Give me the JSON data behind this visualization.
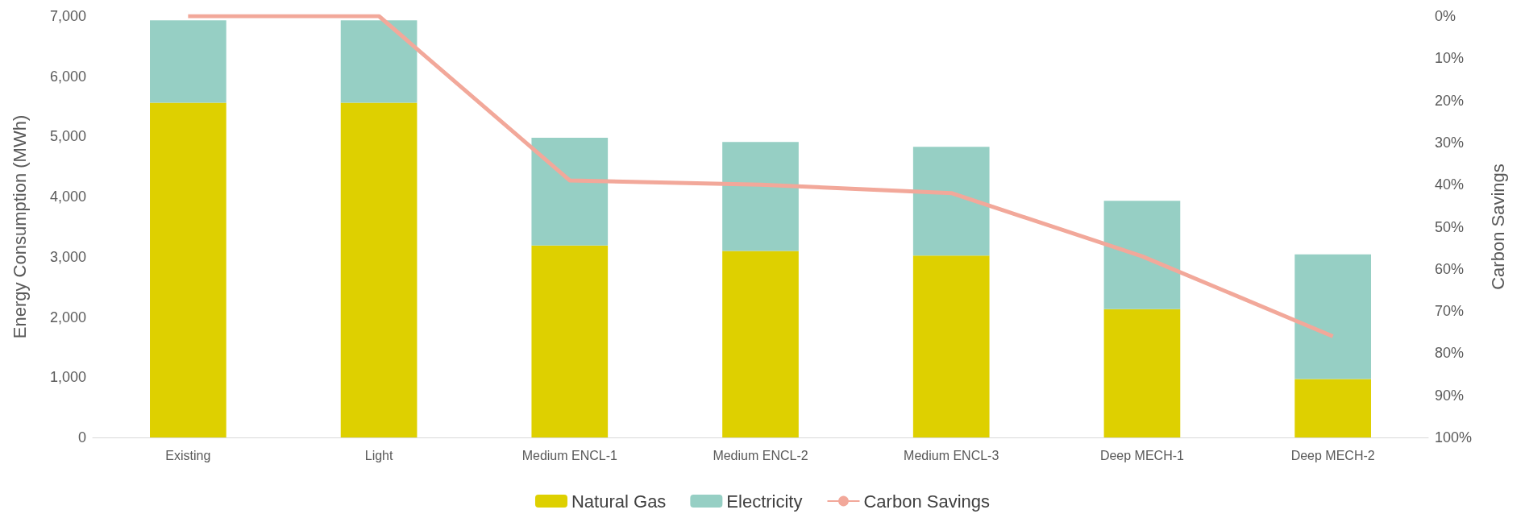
{
  "chart_data": {
    "type": "bar",
    "stacked": true,
    "ylabel": "Energy Consumption (MWh)",
    "y2label": "Carbon Savings",
    "categories": [
      "Existing",
      "Light",
      "Medium ENCL-1",
      "Medium ENCL-2",
      "Medium ENCL-3",
      "Deep MECH-1",
      "Deep MECH-2"
    ],
    "series": [
      {
        "name": "Natural Gas",
        "color": "#ded000",
        "values": [
          5560,
          5560,
          3190,
          3100,
          3020,
          2130,
          970
        ]
      },
      {
        "name": "Electricity",
        "color": "#96cfc4",
        "values": [
          1370,
          1370,
          1790,
          1810,
          1810,
          1800,
          2070
        ]
      },
      {
        "name": "Carbon Savings",
        "type": "line",
        "axis": "y2",
        "color": "#f2a89a",
        "marker": "none",
        "line_style": "solid",
        "values": [
          0,
          0,
          39,
          40,
          42,
          57,
          76
        ]
      }
    ],
    "ylim": [
      0,
      7000
    ],
    "yticks": [
      0,
      {
        "value": 1000,
        "label": "1,000"
      },
      {
        "value": 2000,
        "label": "2,000"
      },
      {
        "value": 3000,
        "label": "3,000"
      },
      {
        "value": 4000,
        "label": "4,000"
      },
      {
        "value": 5000,
        "label": "5,000"
      },
      {
        "value": 6000,
        "label": "6,000"
      },
      {
        "value": 7000,
        "label": "7,000"
      }
    ],
    "y2lim": [
      100,
      0
    ],
    "y2ticks": [
      {
        "value": 0,
        "label": "0%"
      },
      {
        "value": 10,
        "label": "10%"
      },
      {
        "value": 20,
        "label": "20%"
      },
      {
        "value": 30,
        "label": "30%"
      },
      {
        "value": 40,
        "label": "40%"
      },
      {
        "value": 50,
        "label": "50%"
      },
      {
        "value": 60,
        "label": "60%"
      },
      {
        "value": 70,
        "label": "70%"
      },
      {
        "value": 80,
        "label": "80%"
      },
      {
        "value": 90,
        "label": "90%"
      },
      {
        "value": 100,
        "label": "100%"
      }
    ],
    "grid": false,
    "legend": "bottom"
  }
}
